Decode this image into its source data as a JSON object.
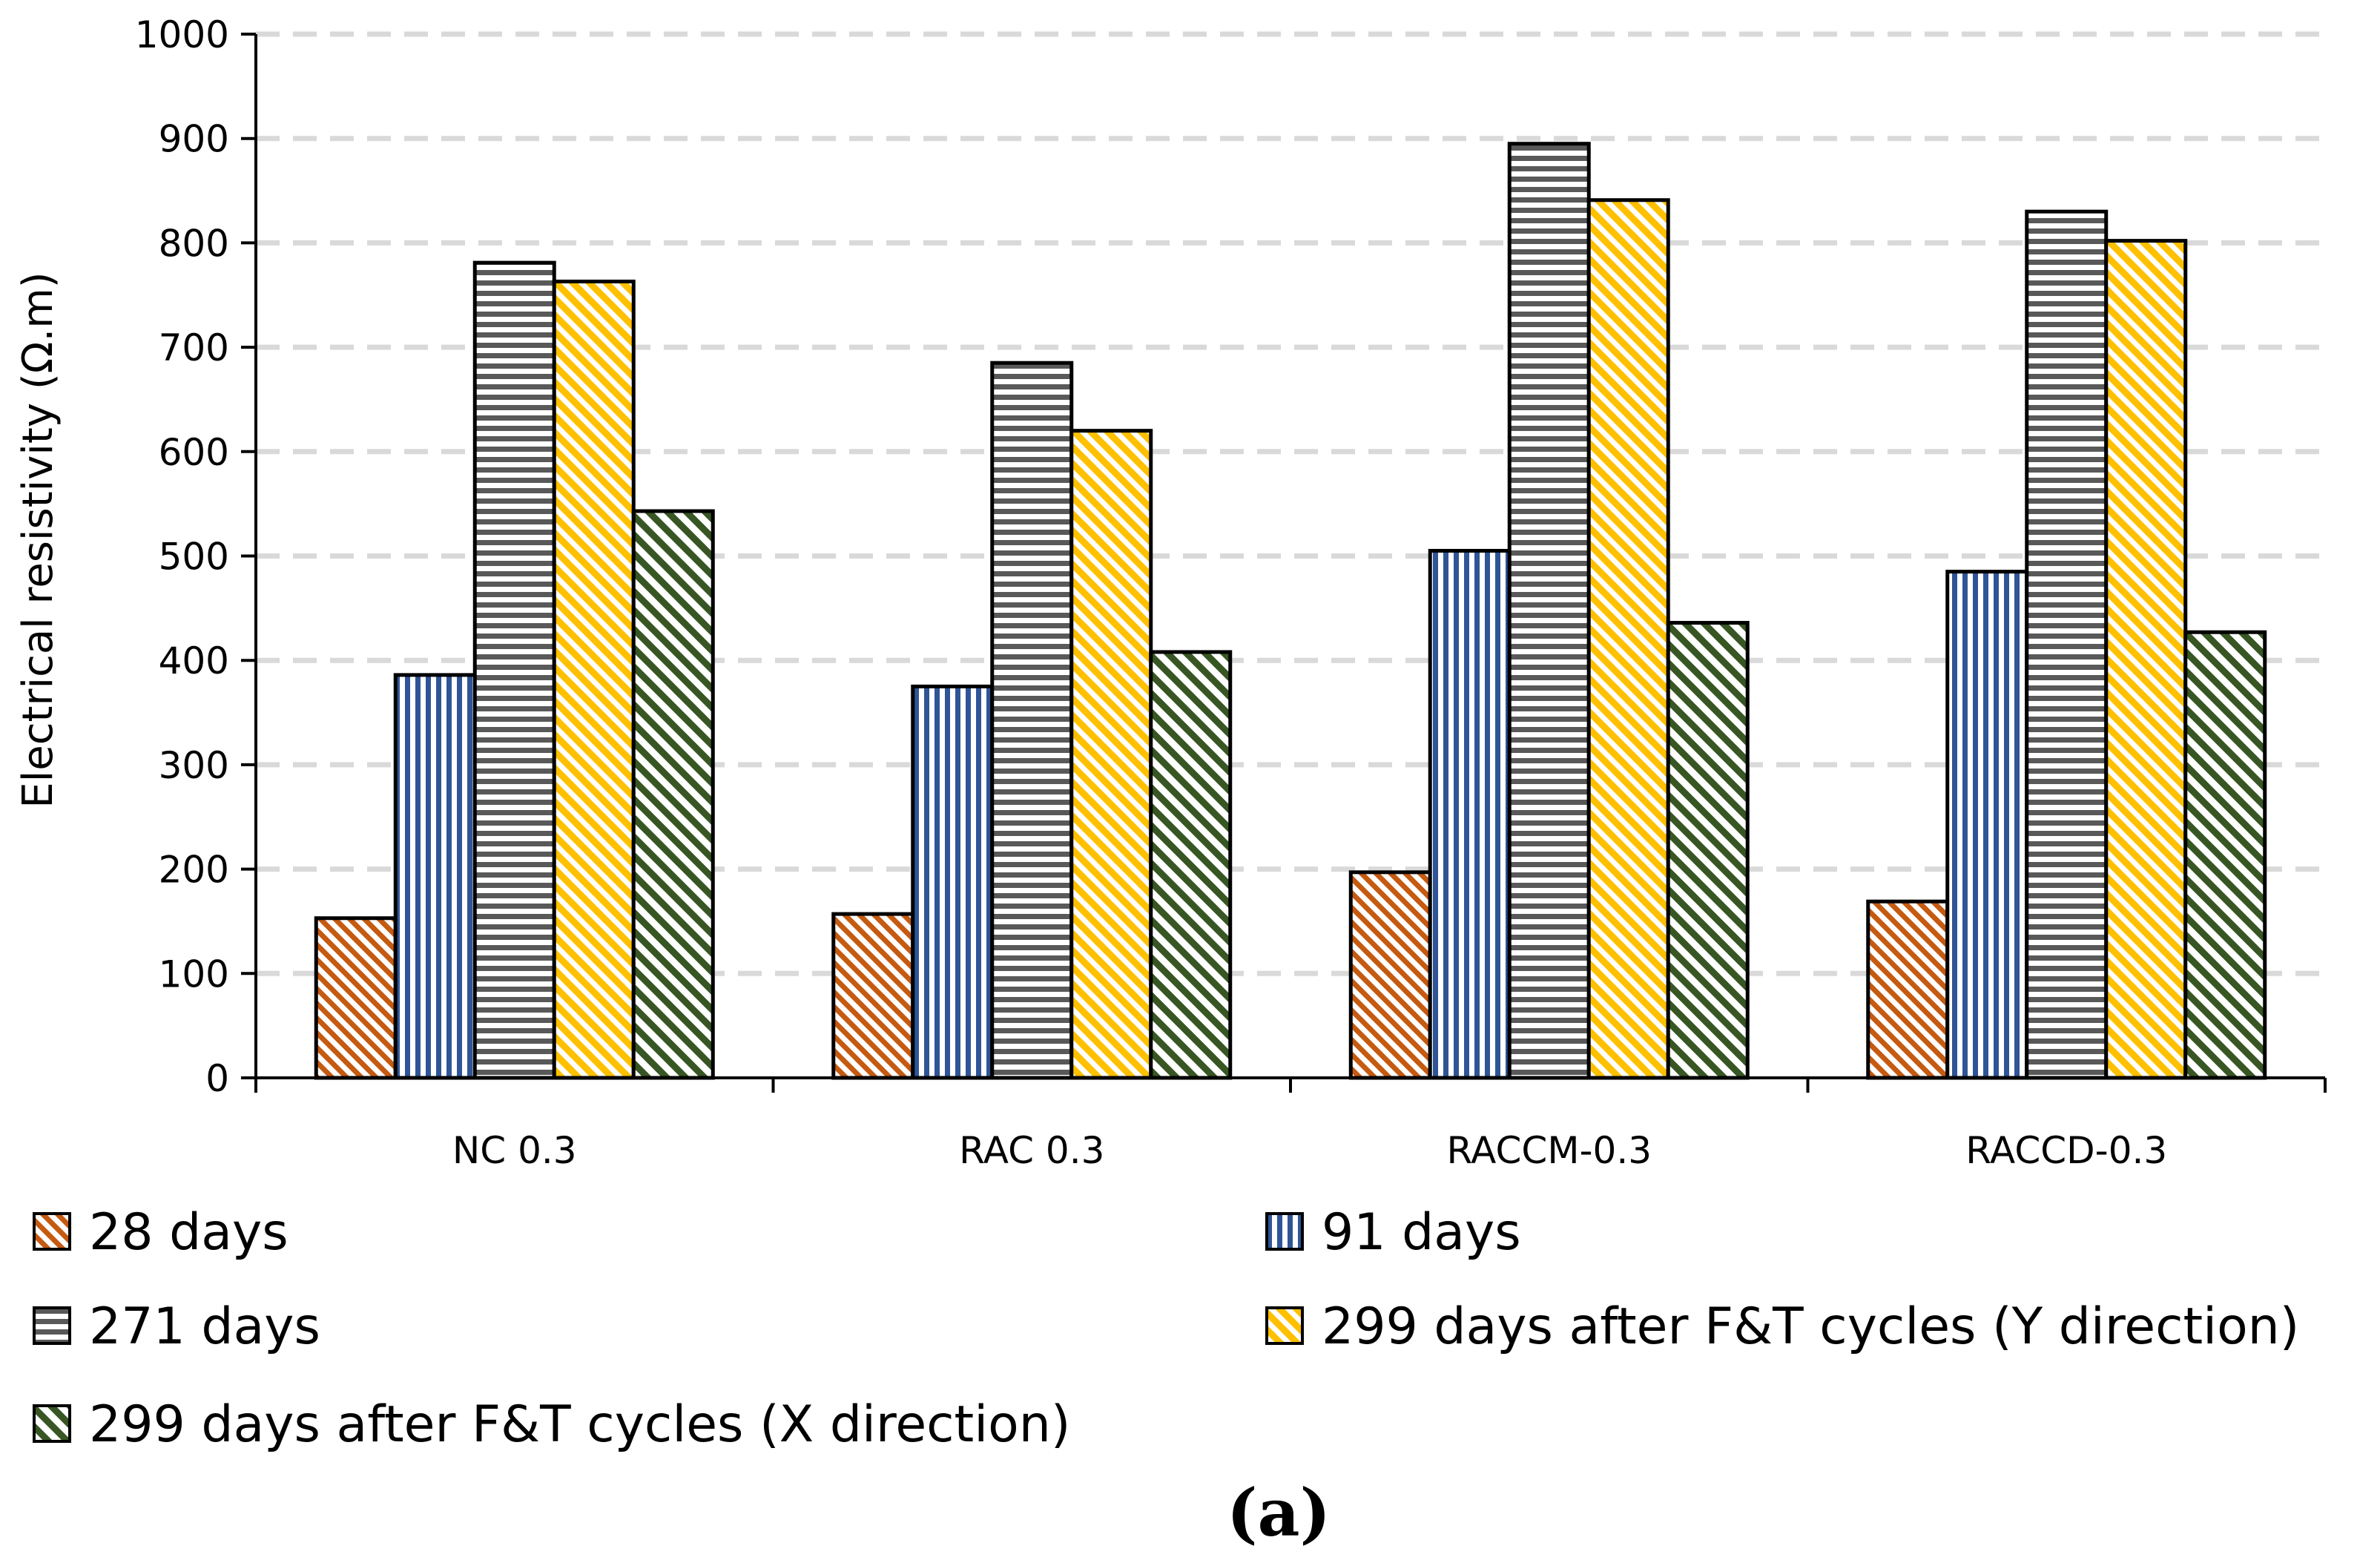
{
  "chart_data": {
    "type": "bar",
    "categories": [
      "NC 0.3",
      "RAC 0.3",
      "RACCM-0.3",
      "RACCD-0.3"
    ],
    "series": [
      {
        "name": "28 days",
        "values": [
          153,
          157,
          197,
          169
        ],
        "color": "#C55A11",
        "pattern": "diag-down"
      },
      {
        "name": "91 days",
        "values": [
          386,
          375,
          505,
          485
        ],
        "color": "#2F5597",
        "pattern": "vertical"
      },
      {
        "name": "271 days",
        "values": [
          781,
          685,
          895,
          830
        ],
        "color": "#595959",
        "pattern": "horizontal"
      },
      {
        "name": "299 days after F&T cycles (Y direction)",
        "values": [
          763,
          620,
          841,
          802
        ],
        "color": "#FFC000",
        "pattern": "diag-down"
      },
      {
        "name": "299 days after F&T cycles (X direction)",
        "values": [
          543,
          408,
          436,
          427
        ],
        "color": "#375623",
        "pattern": "diag-down"
      }
    ],
    "xlabel": "",
    "ylabel": "Electrical resistivity (Ω.m)",
    "ylim": [
      0,
      1000
    ],
    "yticks": [
      "0",
      "100",
      "200",
      "300",
      "400",
      "500",
      "600",
      "700",
      "800",
      "900",
      "1000"
    ],
    "grid": "horizontal dashed",
    "legend_position": "bottom"
  },
  "panel_label": "(a)"
}
